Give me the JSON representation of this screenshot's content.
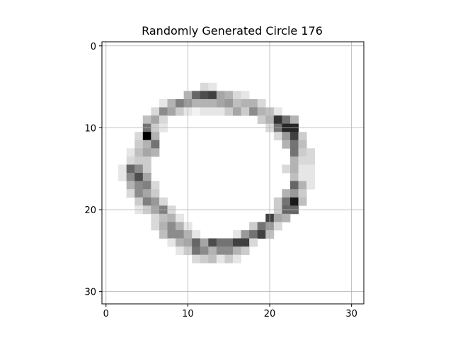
{
  "chart_data": {
    "type": "heatmap",
    "title": "Randomly Generated Circle 176",
    "xlabel": "",
    "ylabel": "",
    "xlim": [
      -0.5,
      31.5
    ],
    "ylim": [
      31.5,
      -0.5
    ],
    "xticks": [
      0,
      10,
      20,
      30
    ],
    "yticks": [
      0,
      10,
      20,
      30
    ],
    "grid": true,
    "colormap": "gray_r",
    "value_range": [
      0,
      1
    ],
    "rows": 32,
    "cols": 32,
    "cells": [
      [
        5,
        12,
        0.15
      ],
      [
        5,
        13,
        0.1
      ],
      [
        6,
        10,
        0.3
      ],
      [
        6,
        11,
        0.6
      ],
      [
        6,
        12,
        0.7
      ],
      [
        6,
        13,
        0.75
      ],
      [
        6,
        14,
        0.35
      ],
      [
        6,
        15,
        0.3
      ],
      [
        6,
        16,
        0.15
      ],
      [
        6,
        17,
        0.1
      ],
      [
        7,
        7,
        0.1
      ],
      [
        7,
        8,
        0.3
      ],
      [
        7,
        9,
        0.5
      ],
      [
        7,
        10,
        0.4
      ],
      [
        7,
        11,
        0.3
      ],
      [
        7,
        12,
        0.3
      ],
      [
        7,
        13,
        0.3
      ],
      [
        7,
        14,
        0.35
      ],
      [
        7,
        15,
        0.4
      ],
      [
        7,
        16,
        0.25
      ],
      [
        7,
        17,
        0.3
      ],
      [
        7,
        18,
        0.3
      ],
      [
        7,
        19,
        0.15
      ],
      [
        8,
        6,
        0.15
      ],
      [
        8,
        7,
        0.45
      ],
      [
        8,
        8,
        0.35
      ],
      [
        8,
        9,
        0.2
      ],
      [
        8,
        10,
        0.1
      ],
      [
        8,
        11,
        0.05
      ],
      [
        8,
        12,
        0.1
      ],
      [
        8,
        13,
        0.1
      ],
      [
        8,
        14,
        0.1
      ],
      [
        8,
        15,
        0.2
      ],
      [
        8,
        16,
        0.35
      ],
      [
        8,
        17,
        0.2
      ],
      [
        8,
        18,
        0.45
      ],
      [
        8,
        19,
        0.3
      ],
      [
        8,
        20,
        0.25
      ],
      [
        8,
        21,
        0.1
      ],
      [
        9,
        5,
        0.25
      ],
      [
        9,
        6,
        0.35
      ],
      [
        9,
        7,
        0.15
      ],
      [
        9,
        19,
        0.2
      ],
      [
        9,
        20,
        0.3
      ],
      [
        9,
        21,
        0.8
      ],
      [
        9,
        22,
        0.55
      ],
      [
        9,
        23,
        0.3
      ],
      [
        10,
        5,
        0.55
      ],
      [
        10,
        6,
        0.2
      ],
      [
        10,
        7,
        0.1
      ],
      [
        10,
        20,
        0.15
      ],
      [
        10,
        21,
        0.55
      ],
      [
        10,
        22,
        0.85
      ],
      [
        10,
        23,
        0.85
      ],
      [
        11,
        4,
        0.15
      ],
      [
        11,
        5,
        1.0
      ],
      [
        11,
        6,
        0.3
      ],
      [
        11,
        21,
        0.15
      ],
      [
        11,
        22,
        0.4
      ],
      [
        11,
        23,
        0.75
      ],
      [
        11,
        24,
        0.2
      ],
      [
        12,
        4,
        0.2
      ],
      [
        12,
        5,
        0.3
      ],
      [
        12,
        6,
        0.55
      ],
      [
        12,
        22,
        0.3
      ],
      [
        12,
        23,
        0.55
      ],
      [
        12,
        24,
        0.25
      ],
      [
        13,
        3,
        0.1
      ],
      [
        13,
        4,
        0.25
      ],
      [
        13,
        5,
        0.35
      ],
      [
        13,
        6,
        0.3
      ],
      [
        13,
        23,
        0.55
      ],
      [
        13,
        24,
        0.2
      ],
      [
        13,
        25,
        0.15
      ],
      [
        14,
        3,
        0.15
      ],
      [
        14,
        4,
        0.2
      ],
      [
        14,
        5,
        0.2
      ],
      [
        14,
        23,
        0.3
      ],
      [
        14,
        24,
        0.15
      ],
      [
        14,
        25,
        0.15
      ],
      [
        15,
        2,
        0.1
      ],
      [
        15,
        3,
        0.6
      ],
      [
        15,
        4,
        0.45
      ],
      [
        15,
        5,
        0.2
      ],
      [
        15,
        22,
        0.15
      ],
      [
        15,
        23,
        0.3
      ],
      [
        15,
        24,
        0.1
      ],
      [
        15,
        25,
        0.1
      ],
      [
        16,
        2,
        0.1
      ],
      [
        16,
        3,
        0.45
      ],
      [
        16,
        4,
        0.7
      ],
      [
        16,
        5,
        0.35
      ],
      [
        16,
        23,
        0.25
      ],
      [
        16,
        24,
        0.1
      ],
      [
        16,
        25,
        0.1
      ],
      [
        17,
        3,
        0.3
      ],
      [
        17,
        4,
        0.45
      ],
      [
        17,
        5,
        0.5
      ],
      [
        17,
        6,
        0.15
      ],
      [
        17,
        23,
        0.6
      ],
      [
        17,
        24,
        0.3
      ],
      [
        17,
        25,
        0.1
      ],
      [
        18,
        3,
        0.15
      ],
      [
        18,
        4,
        0.45
      ],
      [
        18,
        5,
        0.35
      ],
      [
        18,
        6,
        0.2
      ],
      [
        18,
        22,
        0.3
      ],
      [
        18,
        23,
        0.4
      ],
      [
        18,
        24,
        0.2
      ],
      [
        19,
        4,
        0.2
      ],
      [
        19,
        5,
        0.5
      ],
      [
        19,
        6,
        0.4
      ],
      [
        19,
        7,
        0.15
      ],
      [
        19,
        21,
        0.2
      ],
      [
        19,
        22,
        0.55
      ],
      [
        19,
        23,
        0.9
      ],
      [
        19,
        24,
        0.25
      ],
      [
        20,
        4,
        0.1
      ],
      [
        20,
        5,
        0.2
      ],
      [
        20,
        6,
        0.35
      ],
      [
        20,
        7,
        0.5
      ],
      [
        20,
        8,
        0.15
      ],
      [
        20,
        21,
        0.2
      ],
      [
        20,
        22,
        0.6
      ],
      [
        20,
        23,
        0.6
      ],
      [
        21,
        6,
        0.15
      ],
      [
        21,
        7,
        0.25
      ],
      [
        21,
        8,
        0.3
      ],
      [
        21,
        9,
        0.1
      ],
      [
        21,
        20,
        0.75
      ],
      [
        21,
        21,
        0.35
      ],
      [
        21,
        22,
        0.3
      ],
      [
        22,
        6,
        0.15
      ],
      [
        22,
        7,
        0.3
      ],
      [
        22,
        8,
        0.45
      ],
      [
        22,
        9,
        0.3
      ],
      [
        22,
        10,
        0.1
      ],
      [
        22,
        18,
        0.2
      ],
      [
        22,
        19,
        0.55
      ],
      [
        22,
        20,
        0.4
      ],
      [
        22,
        21,
        0.15
      ],
      [
        23,
        7,
        0.25
      ],
      [
        23,
        8,
        0.45
      ],
      [
        23,
        9,
        0.45
      ],
      [
        23,
        10,
        0.3
      ],
      [
        23,
        11,
        0.1
      ],
      [
        23,
        16,
        0.1
      ],
      [
        23,
        17,
        0.4
      ],
      [
        23,
        18,
        0.55
      ],
      [
        23,
        19,
        0.75
      ],
      [
        23,
        20,
        0.25
      ],
      [
        24,
        8,
        0.1
      ],
      [
        24,
        9,
        0.3
      ],
      [
        24,
        10,
        0.35
      ],
      [
        24,
        11,
        0.6
      ],
      [
        24,
        12,
        0.35
      ],
      [
        24,
        13,
        0.7
      ],
      [
        24,
        14,
        0.55
      ],
      [
        24,
        15,
        0.55
      ],
      [
        24,
        16,
        0.75
      ],
      [
        24,
        17,
        0.75
      ],
      [
        24,
        18,
        0.15
      ],
      [
        25,
        9,
        0.1
      ],
      [
        25,
        10,
        0.2
      ],
      [
        25,
        11,
        0.55
      ],
      [
        25,
        12,
        0.45
      ],
      [
        25,
        13,
        0.3
      ],
      [
        25,
        14,
        0.45
      ],
      [
        25,
        15,
        0.45
      ],
      [
        25,
        16,
        0.3
      ],
      [
        25,
        17,
        0.2
      ],
      [
        26,
        11,
        0.15
      ],
      [
        26,
        12,
        0.2
      ],
      [
        26,
        13,
        0.25
      ],
      [
        26,
        14,
        0.1
      ],
      [
        26,
        15,
        0.2
      ],
      [
        26,
        16,
        0.1
      ]
    ]
  }
}
